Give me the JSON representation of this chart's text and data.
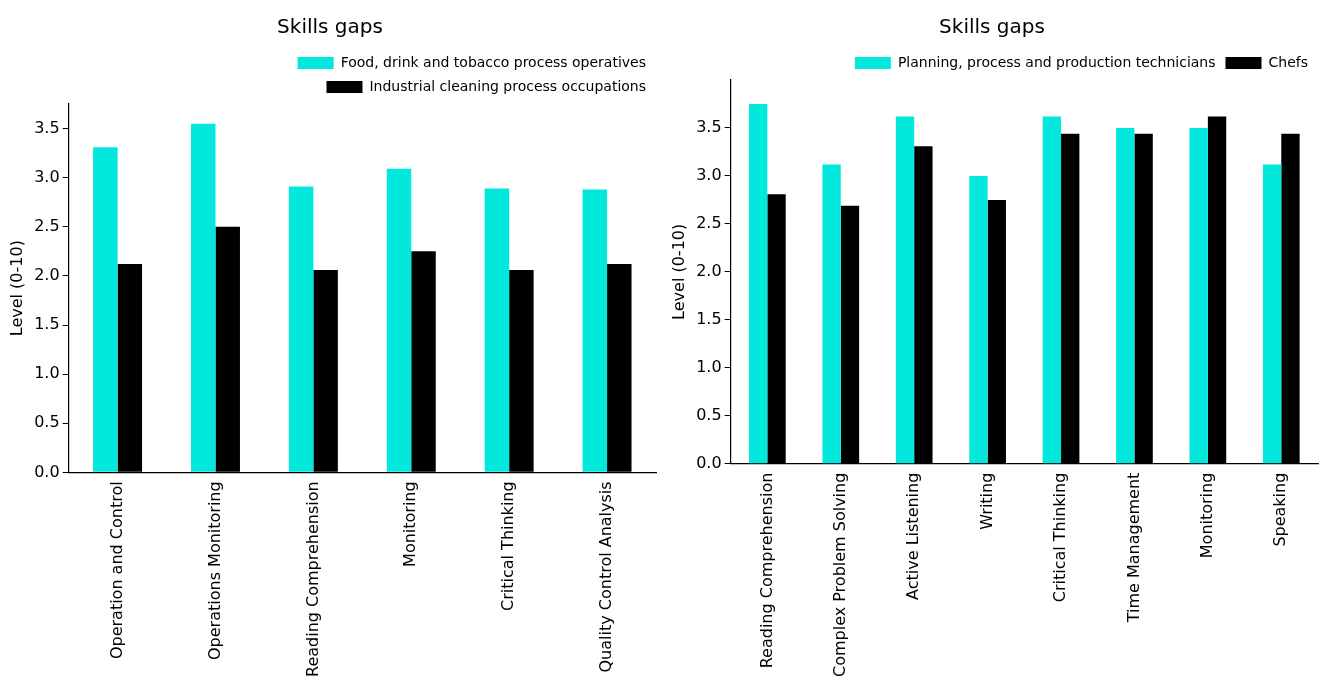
{
  "chart_data": [
    {
      "type": "bar",
      "title": "Skills gaps",
      "ylabel": "Level (0-10)",
      "categories": [
        "Operation and Control",
        "Operations Monitoring",
        "Reading Comprehension",
        "Monitoring",
        "Critical Thinking",
        "Quality Control Analysis"
      ],
      "series": [
        {
          "name": "Food, drink and tobacco process operatives",
          "color": "#03e8dc",
          "values": [
            3.31,
            3.55,
            2.91,
            3.09,
            2.89,
            2.88
          ]
        },
        {
          "name": "Industrial cleaning process occupations",
          "color": "#000000",
          "values": [
            2.12,
            2.5,
            2.06,
            2.25,
            2.06,
            2.12
          ]
        }
      ],
      "ylim": [
        0,
        3.75
      ],
      "yticks": [
        {
          "value": 0,
          "label": "0.0"
        },
        0.5,
        {
          "value": 1,
          "label": "1.0"
        },
        1.5,
        {
          "value": 2,
          "label": "2.0"
        },
        2.5,
        {
          "value": 3,
          "label": "3.0"
        },
        3.5
      ],
      "grid": false,
      "legend": "top right"
    },
    {
      "type": "bar",
      "title": "Skills gaps",
      "ylabel": "Level (0-10)",
      "categories": [
        "Reading Comprehension",
        "Complex Problem Solving",
        "Active Listening",
        "Writing",
        "Critical Thinking",
        "Time Management",
        "Monitoring",
        "Speaking"
      ],
      "series": [
        {
          "name": "Planning, process and production technicians",
          "color": "#03e8dc",
          "values": [
            3.75,
            3.12,
            3.62,
            3.0,
            3.62,
            3.5,
            3.5,
            3.12
          ]
        },
        {
          "name": "Chefs",
          "color": "#000000",
          "values": [
            2.81,
            2.69,
            3.31,
            2.75,
            3.44,
            3.44,
            3.62,
            3.44
          ]
        }
      ],
      "ylim": [
        0,
        4.0
      ],
      "yticks": [
        {
          "value": 0,
          "label": "0.0"
        },
        0.5,
        {
          "value": 1,
          "label": "1.0"
        },
        1.5,
        {
          "value": 2,
          "label": "2.0"
        },
        2.5,
        {
          "value": 3,
          "label": "3.0"
        },
        3.5
      ],
      "grid": false,
      "legend": "top right"
    }
  ]
}
